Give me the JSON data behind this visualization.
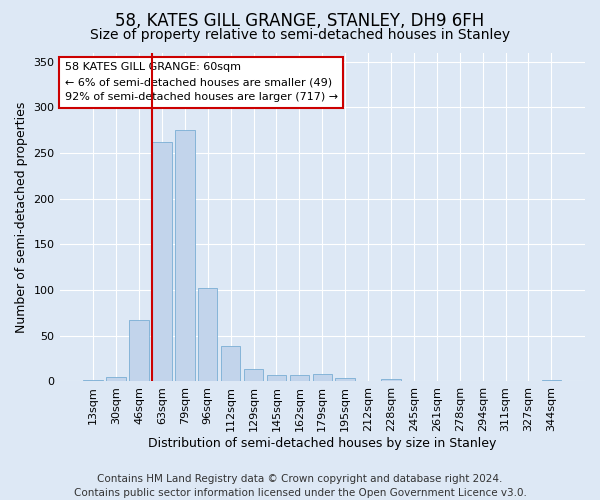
{
  "title": "58, KATES GILL GRANGE, STANLEY, DH9 6FH",
  "subtitle": "Size of property relative to semi-detached houses in Stanley",
  "xlabel": "Distribution of semi-detached houses by size in Stanley",
  "ylabel": "Number of semi-detached properties",
  "categories": [
    "13sqm",
    "30sqm",
    "46sqm",
    "63sqm",
    "79sqm",
    "96sqm",
    "112sqm",
    "129sqm",
    "145sqm",
    "162sqm",
    "179sqm",
    "195sqm",
    "212sqm",
    "228sqm",
    "245sqm",
    "261sqm",
    "278sqm",
    "294sqm",
    "311sqm",
    "327sqm",
    "344sqm"
  ],
  "values": [
    2,
    5,
    67,
    262,
    275,
    102,
    39,
    14,
    7,
    7,
    8,
    4,
    0,
    3,
    0,
    0,
    0,
    0,
    0,
    0,
    2
  ],
  "bar_color": "#c2d4eb",
  "bar_edge_color": "#7aaed4",
  "vline_color": "#cc0000",
  "vline_index": 3,
  "annotation_text": "58 KATES GILL GRANGE: 60sqm\n← 6% of semi-detached houses are smaller (49)\n92% of semi-detached houses are larger (717) →",
  "annotation_box_facecolor": "#ffffff",
  "annotation_box_edgecolor": "#cc0000",
  "ylim": [
    0,
    360
  ],
  "yticks": [
    0,
    50,
    100,
    150,
    200,
    250,
    300,
    350
  ],
  "footer_line1": "Contains HM Land Registry data © Crown copyright and database right 2024.",
  "footer_line2": "Contains public sector information licensed under the Open Government Licence v3.0.",
  "background_color": "#dde8f5",
  "grid_color": "#ffffff",
  "title_fontsize": 12,
  "subtitle_fontsize": 10,
  "axis_label_fontsize": 9,
  "tick_fontsize": 8,
  "footer_fontsize": 7.5
}
